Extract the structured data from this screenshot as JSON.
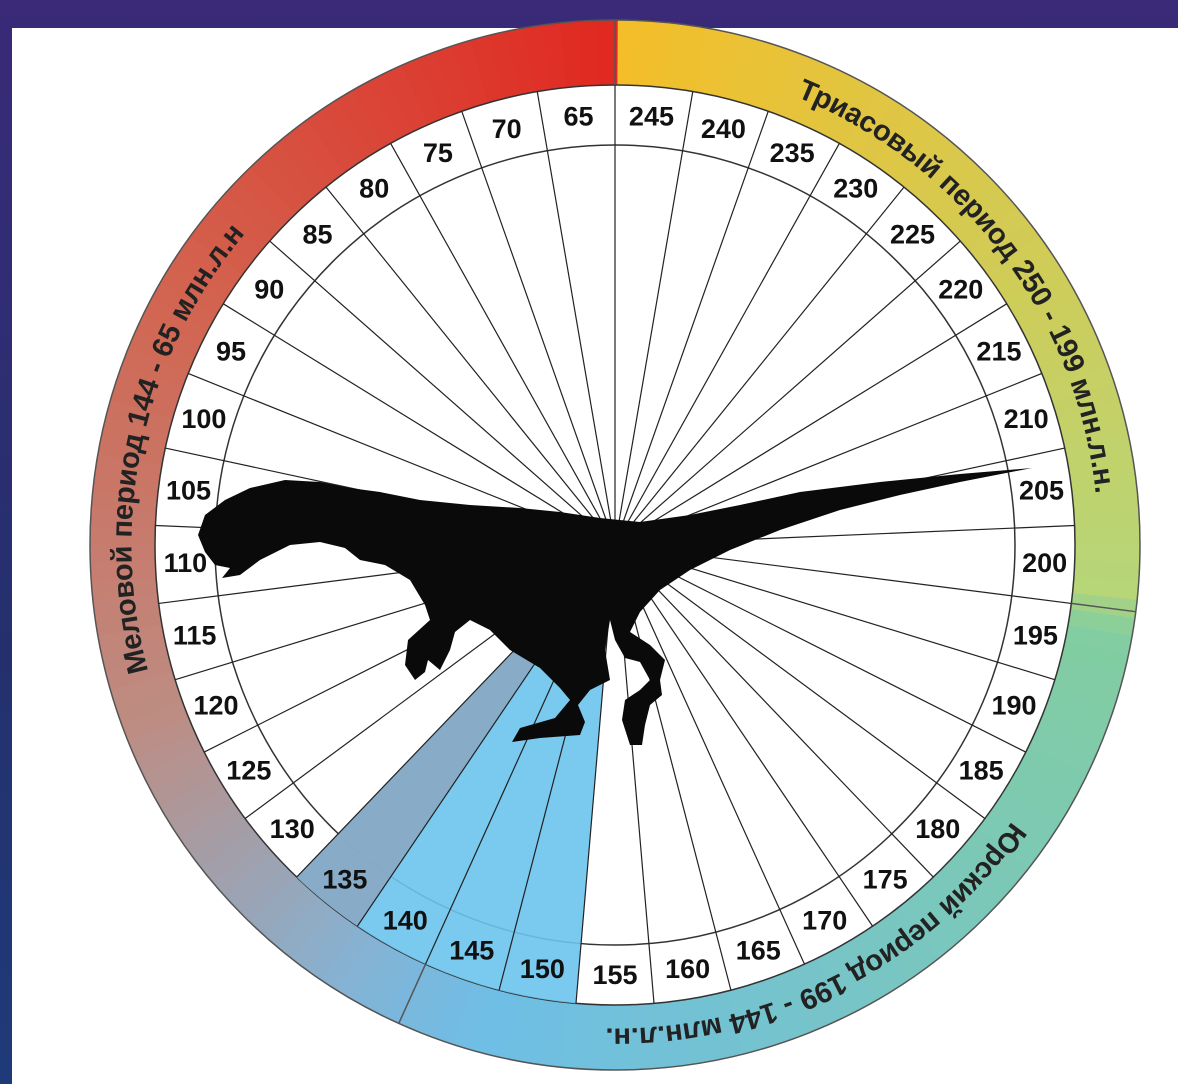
{
  "periods": [
    {
      "label": "Триасовый период 250 - 199 млн.л.н."
    },
    {
      "label": "Юрский период 199 - 144 млн.л.н."
    },
    {
      "label": "Меловой период 144 - 65 млн.л.н"
    }
  ],
  "ticks": [
    245,
    240,
    235,
    230,
    225,
    220,
    215,
    210,
    205,
    200,
    195,
    190,
    185,
    180,
    175,
    170,
    165,
    160,
    155,
    150,
    145,
    140,
    135,
    130,
    125,
    120,
    115,
    110,
    105,
    100,
    95,
    90,
    85,
    80,
    75,
    70,
    65
  ]
}
